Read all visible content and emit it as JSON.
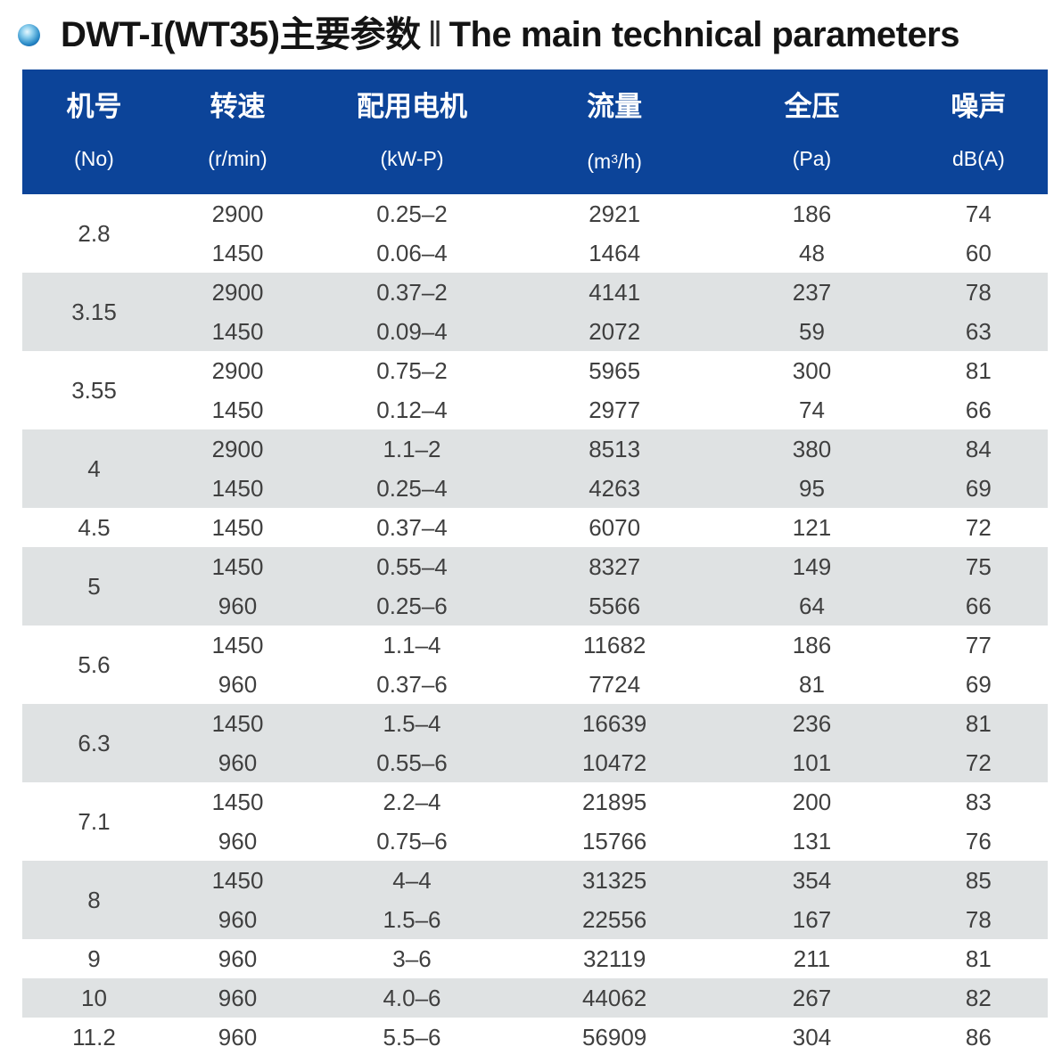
{
  "title": {
    "model_prefix": "DWT-",
    "model_roman": "I",
    "model_suffix": "(WT35)主要参数",
    "separator": "‖",
    "english": "The main technical parameters"
  },
  "colors": {
    "header_bg": "#0c4499",
    "row_alt_bg": "#dfe2e3",
    "bullet_blue": "#0d5da6",
    "title_text": "#141414",
    "cell_text": "#3f3f3f"
  },
  "icons": {
    "bullet": "blue-sphere-bullet"
  },
  "header": {
    "no": {
      "label": "机号",
      "unit": "(No)"
    },
    "speed": {
      "label": "转速",
      "unit": "(r/min)"
    },
    "motor": {
      "label": "配用电机",
      "unit": "(kW-P)"
    },
    "flow": {
      "label": "流量",
      "unit_prefix": "(m",
      "unit_sup": "3",
      "unit_suffix": "/h)"
    },
    "pressure": {
      "label": "全压",
      "unit": "(Pa)"
    },
    "noise": {
      "label": "噪声",
      "unit": "dB(A)"
    }
  },
  "chart_data": {
    "type": "table",
    "title": "DWT-I(WT35) main technical parameters",
    "columns": [
      "机号 (No)",
      "转速 (r/min)",
      "配用电机 (kW-P)",
      "流量 (m3/h)",
      "全压 (Pa)",
      "噪声 dB(A)"
    ],
    "groups": [
      {
        "no": "2.8",
        "rows": [
          [
            "2900",
            "0.25–2",
            "2921",
            "186",
            "74"
          ],
          [
            "1450",
            "0.06–4",
            "1464",
            "48",
            "60"
          ]
        ]
      },
      {
        "no": "3.15",
        "rows": [
          [
            "2900",
            "0.37–2",
            "4141",
            "237",
            "78"
          ],
          [
            "1450",
            "0.09–4",
            "2072",
            "59",
            "63"
          ]
        ]
      },
      {
        "no": "3.55",
        "rows": [
          [
            "2900",
            "0.75–2",
            "5965",
            "300",
            "81"
          ],
          [
            "1450",
            "0.12–4",
            "2977",
            "74",
            "66"
          ]
        ]
      },
      {
        "no": "4",
        "rows": [
          [
            "2900",
            "1.1–2",
            "8513",
            "380",
            "84"
          ],
          [
            "1450",
            "0.25–4",
            "4263",
            "95",
            "69"
          ]
        ]
      },
      {
        "no": "4.5",
        "rows": [
          [
            "1450",
            "0.37–4",
            "6070",
            "121",
            "72"
          ]
        ]
      },
      {
        "no": "5",
        "rows": [
          [
            "1450",
            "0.55–4",
            "8327",
            "149",
            "75"
          ],
          [
            "960",
            "0.25–6",
            "5566",
            "64",
            "66"
          ]
        ]
      },
      {
        "no": "5.6",
        "rows": [
          [
            "1450",
            "1.1–4",
            "11682",
            "186",
            "77"
          ],
          [
            "960",
            "0.37–6",
            "7724",
            "81",
            "69"
          ]
        ]
      },
      {
        "no": "6.3",
        "rows": [
          [
            "1450",
            "1.5–4",
            "16639",
            "236",
            "81"
          ],
          [
            "960",
            "0.55–6",
            "10472",
            "101",
            "72"
          ]
        ]
      },
      {
        "no": "7.1",
        "rows": [
          [
            "1450",
            "2.2–4",
            "21895",
            "200",
            "83"
          ],
          [
            "960",
            "0.75–6",
            "15766",
            "131",
            "76"
          ]
        ]
      },
      {
        "no": "8",
        "rows": [
          [
            "1450",
            "4–4",
            "31325",
            "354",
            "85"
          ],
          [
            "960",
            "1.5–6",
            "22556",
            "167",
            "78"
          ]
        ]
      },
      {
        "no": "9",
        "rows": [
          [
            "960",
            "3–6",
            "32119",
            "211",
            "81"
          ]
        ]
      },
      {
        "no": "10",
        "rows": [
          [
            "960",
            "4.0–6",
            "44062",
            "267",
            "82"
          ]
        ]
      },
      {
        "no": "11.2",
        "rows": [
          [
            "960",
            "5.5–6",
            "56909",
            "304",
            "86"
          ]
        ]
      }
    ]
  }
}
